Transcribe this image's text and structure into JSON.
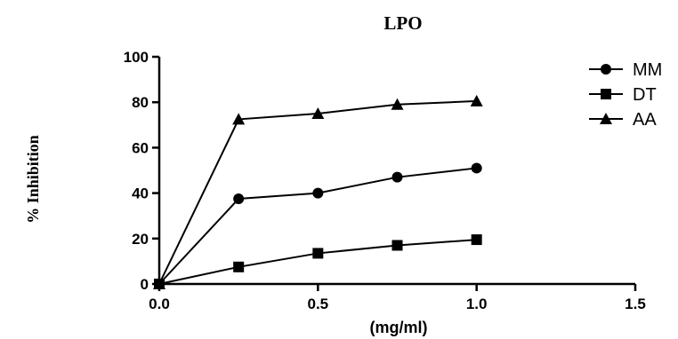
{
  "chart_data": {
    "type": "line",
    "title": "LPO",
    "xlabel": "(mg/ml)",
    "ylabel": "% Inhibition",
    "xlim": [
      0,
      1.5
    ],
    "ylim": [
      0,
      100
    ],
    "x_ticks": [
      0.0,
      0.5,
      1.0,
      1.5
    ],
    "x_tick_labels": [
      "0.0",
      "0.5",
      "1.0",
      "1.5"
    ],
    "y_ticks": [
      0,
      20,
      40,
      60,
      80,
      100
    ],
    "y_tick_labels": [
      "0",
      "20",
      "40",
      "60",
      "80",
      "100"
    ],
    "x": [
      0,
      0.25,
      0.5,
      0.75,
      1.0
    ],
    "grid": false,
    "legend_position": "top-right",
    "series": [
      {
        "name": "MM",
        "marker": "circle",
        "values": [
          0,
          37.5,
          40,
          47,
          51
        ]
      },
      {
        "name": "DT",
        "marker": "square",
        "values": [
          0,
          7.5,
          13.5,
          17,
          19.5
        ]
      },
      {
        "name": "AA",
        "marker": "triangle",
        "values": [
          0,
          72.5,
          75,
          79,
          80.5
        ]
      }
    ]
  }
}
